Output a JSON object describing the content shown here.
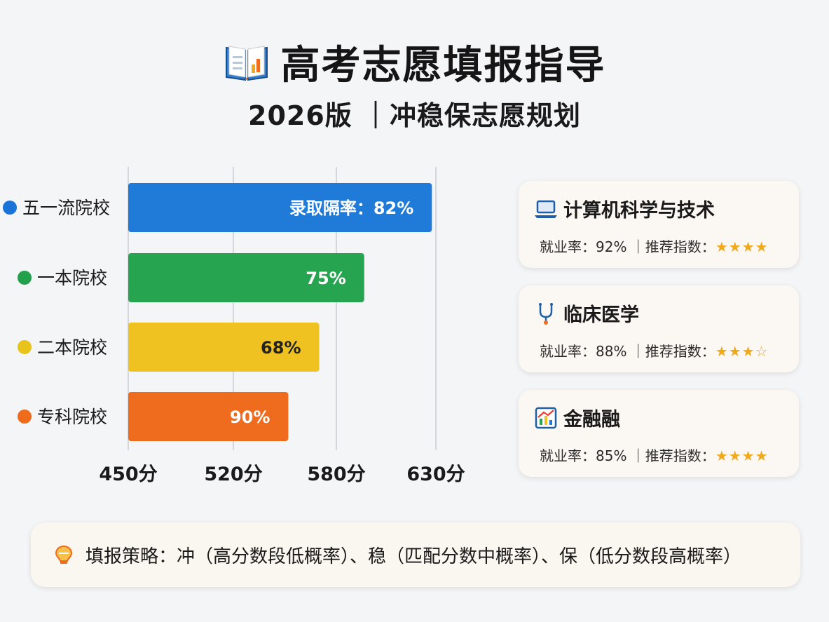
{
  "header": {
    "title": "高考志愿填报指导",
    "subtitle": "2026版 ｜冲稳保志愿规划"
  },
  "chart_data": {
    "type": "bar",
    "orientation": "horizontal",
    "categories": [
      "五一流院校",
      "一本院校",
      "二本院校",
      "专科院校"
    ],
    "category_dot_colors": [
      "#1a73d6",
      "#22a04b",
      "#e8c31c",
      "#ef6c1c"
    ],
    "bar_colors": [
      "#1f7ad8",
      "#27a44f",
      "#efc121",
      "#ef6b1d"
    ],
    "end_scores": [
      628,
      594,
      570,
      552
    ],
    "value_labels": [
      "录取隔率：82%",
      "75%",
      "68%",
      "90%"
    ],
    "x_ticks": [
      "450分",
      "520分",
      "580分",
      "630分"
    ],
    "x_tick_values": [
      450,
      520,
      580,
      630
    ],
    "grid": true,
    "legend": "none"
  },
  "cards": [
    {
      "icon": "laptop-icon",
      "title": "计算机科学与技术",
      "info": "就业率：92% ｜推荐指数：",
      "stars": "★★★★"
    },
    {
      "icon": "stethoscope-icon",
      "title": "临床医学",
      "info": "就业率：88% ｜推荐指数：",
      "stars": "★★★☆"
    },
    {
      "icon": "chart-icon",
      "title": "金融融",
      "info": "就业率：85% ｜推荐指数：",
      "stars": "★★★★"
    }
  ],
  "strategy": {
    "text": "填报策略：冲（高分数段低概率）、稳（匹配分数中概率）、保（低分数段高概率）"
  },
  "colors": {
    "accent_orange": "#f0a81d",
    "background": "#f4f5f7"
  }
}
